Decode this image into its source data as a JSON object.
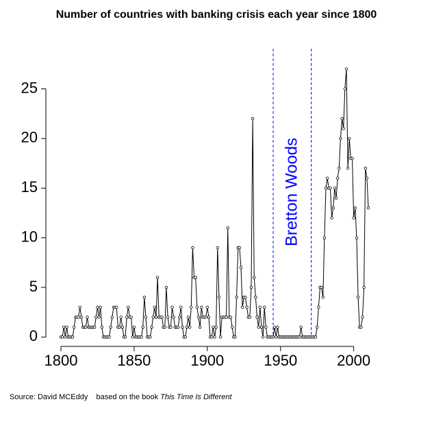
{
  "chart_data": {
    "type": "line",
    "title": "Number of countries with banking crisis each year since 1800",
    "source": "Source: David MCEddy    based on the book",
    "source_book": "This Time Is Different",
    "annotation": {
      "text": "Bretton Woods",
      "color": "#0000ff",
      "vlines": [
        1945,
        1971
      ]
    },
    "x": [
      1800,
      1801,
      1802,
      1803,
      1804,
      1805,
      1806,
      1807,
      1808,
      1809,
      1810,
      1811,
      1812,
      1813,
      1814,
      1815,
      1816,
      1817,
      1818,
      1819,
      1820,
      1821,
      1822,
      1823,
      1824,
      1825,
      1826,
      1827,
      1828,
      1829,
      1830,
      1831,
      1832,
      1833,
      1834,
      1835,
      1836,
      1837,
      1838,
      1839,
      1840,
      1841,
      1842,
      1843,
      1844,
      1845,
      1846,
      1847,
      1848,
      1849,
      1850,
      1851,
      1852,
      1853,
      1854,
      1855,
      1856,
      1857,
      1858,
      1859,
      1860,
      1861,
      1862,
      1863,
      1864,
      1865,
      1866,
      1867,
      1868,
      1869,
      1870,
      1871,
      1872,
      1873,
      1874,
      1875,
      1876,
      1877,
      1878,
      1879,
      1880,
      1881,
      1882,
      1883,
      1884,
      1885,
      1886,
      1887,
      1888,
      1889,
      1890,
      1891,
      1892,
      1893,
      1894,
      1895,
      1896,
      1897,
      1898,
      1899,
      1900,
      1901,
      1902,
      1903,
      1904,
      1905,
      1906,
      1907,
      1908,
      1909,
      1910,
      1911,
      1912,
      1913,
      1914,
      1915,
      1916,
      1917,
      1918,
      1919,
      1920,
      1921,
      1922,
      1923,
      1924,
      1925,
      1926,
      1927,
      1928,
      1929,
      1930,
      1931,
      1932,
      1933,
      1934,
      1935,
      1936,
      1937,
      1938,
      1939,
      1940,
      1941,
      1942,
      1943,
      1944,
      1945,
      1946,
      1947,
      1948,
      1949,
      1950,
      1951,
      1952,
      1953,
      1954,
      1955,
      1956,
      1957,
      1958,
      1959,
      1960,
      1961,
      1962,
      1963,
      1964,
      1965,
      1966,
      1967,
      1968,
      1969,
      1970,
      1971,
      1972,
      1973,
      1974,
      1975,
      1976,
      1977,
      1978,
      1979,
      1980,
      1981,
      1982,
      1983,
      1984,
      1985,
      1986,
      1987,
      1988,
      1989,
      1990,
      1991,
      1992,
      1993,
      1994,
      1995,
      1996,
      1997,
      1998,
      1999,
      2000,
      2001,
      2002,
      2003,
      2004,
      2005,
      2006,
      2007,
      2008,
      2009,
      2010
    ],
    "series": [
      {
        "color": "#000000",
        "values": [
          0,
          0,
          1,
          0,
          1,
          0,
          0,
          0,
          0,
          1,
          2,
          2,
          2,
          3,
          2,
          1,
          1,
          1,
          2,
          1,
          1,
          1,
          1,
          1,
          2,
          3,
          2,
          3,
          1,
          0,
          0,
          0,
          0,
          0,
          1,
          2,
          3,
          3,
          3,
          1,
          1,
          2,
          1,
          0,
          0,
          2,
          3,
          2,
          2,
          0,
          1,
          0,
          0,
          0,
          0,
          0,
          1,
          4,
          2,
          0,
          0,
          0,
          1,
          2,
          3,
          2,
          6,
          2,
          2,
          2,
          1,
          1,
          5,
          2,
          1,
          1,
          3,
          2,
          1,
          1,
          1,
          2,
          3,
          1,
          0,
          0,
          1,
          2,
          1,
          3,
          9,
          6,
          6,
          3,
          2,
          1,
          3,
          2,
          2,
          2,
          3,
          2,
          0,
          0,
          1,
          0,
          1,
          9,
          4,
          0,
          2,
          2,
          2,
          2,
          11,
          2,
          2,
          1,
          0,
          0,
          4,
          9,
          9,
          7,
          3,
          4,
          4,
          3,
          2,
          2,
          5,
          22,
          6,
          4,
          2,
          1,
          3,
          1,
          0,
          3,
          1,
          0,
          0,
          0,
          0,
          0,
          1,
          0,
          1,
          0,
          0,
          0,
          0,
          0,
          0,
          0,
          0,
          0,
          0,
          0,
          0,
          0,
          0,
          0,
          1,
          0,
          0,
          0,
          0,
          0,
          0,
          0,
          0,
          0,
          0,
          1,
          3,
          5,
          5,
          4,
          10,
          15,
          16,
          15,
          15,
          12,
          13,
          15,
          14,
          16,
          17,
          20,
          22,
          21,
          25,
          27,
          17,
          20,
          18,
          18,
          12,
          13,
          10,
          4,
          1,
          1,
          2,
          5,
          17,
          16,
          13
        ]
      }
    ],
    "xlim": [
      1791.6,
      2018.4
    ],
    "xticks": [
      1800,
      1850,
      1900,
      1950,
      2000
    ],
    "ylim": [
      -1.08,
      28.08
    ],
    "yticks": [
      0,
      5,
      10,
      15,
      20,
      25
    ]
  }
}
